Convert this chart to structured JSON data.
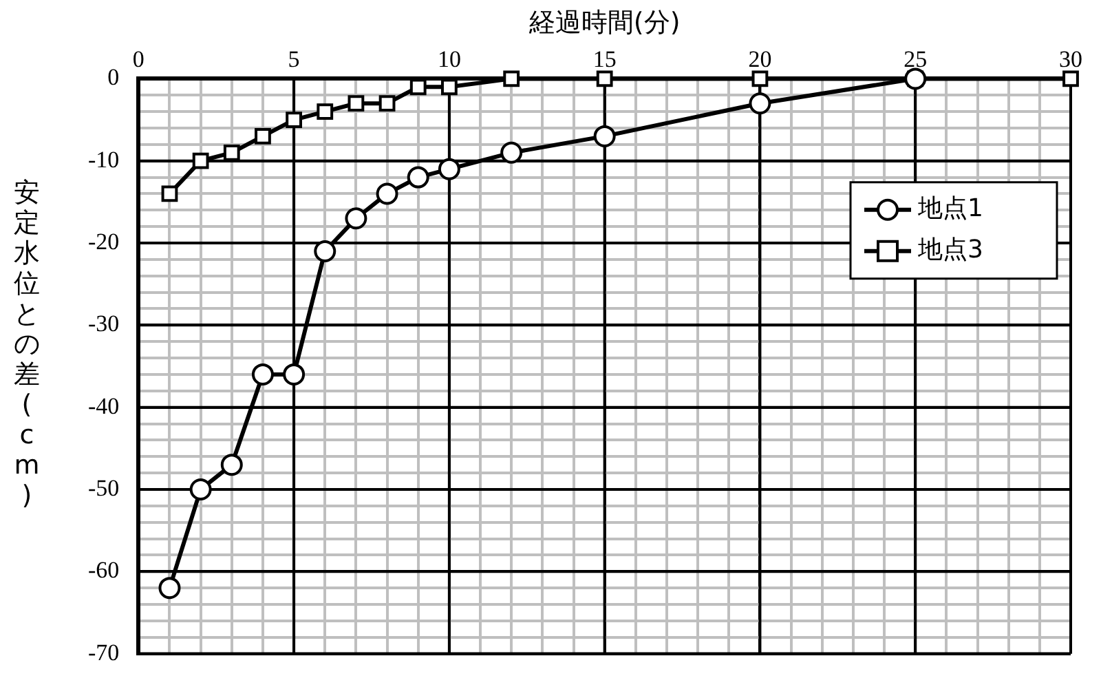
{
  "chart_data": {
    "type": "line",
    "xlabel": "経過時間(分)",
    "ylabel": "安定水位との差(cm)",
    "xlim": [
      0,
      30
    ],
    "xticks": [
      0,
      {
        "value": 1,
        "label": null
      },
      {
        "value": 2,
        "label": null
      },
      {
        "value": 3,
        "label": null
      },
      {
        "value": 4,
        "label": null
      },
      5,
      {
        "value": 6,
        "label": null
      },
      {
        "value": 7,
        "label": null
      },
      {
        "value": 8,
        "label": null
      },
      {
        "value": 9,
        "label": null
      },
      10,
      {
        "value": 11,
        "label": null
      },
      {
        "value": 12,
        "label": null
      },
      {
        "value": 13,
        "label": null
      },
      {
        "value": 14,
        "label": null
      },
      15,
      {
        "value": 16,
        "label": null
      },
      {
        "value": 17,
        "label": null
      },
      {
        "value": 18,
        "label": null
      },
      {
        "value": 19,
        "label": null
      },
      20,
      {
        "value": 21,
        "label": null
      },
      {
        "value": 22,
        "label": null
      },
      {
        "value": 23,
        "label": null
      },
      {
        "value": 24,
        "label": null
      },
      25,
      {
        "value": 26,
        "label": null
      },
      {
        "value": 27,
        "label": null
      },
      {
        "value": 28,
        "label": null
      },
      {
        "value": 29,
        "label": null
      },
      30
    ],
    "ylim": [
      -70,
      0
    ],
    "yticks": [
      -70,
      {
        "value": -68,
        "label": null
      },
      {
        "value": -66,
        "label": null
      },
      {
        "value": -64,
        "label": null
      },
      {
        "value": -62,
        "label": null
      },
      -60,
      {
        "value": -58,
        "label": null
      },
      {
        "value": -56,
        "label": null
      },
      {
        "value": -54,
        "label": null
      },
      {
        "value": -52,
        "label": null
      },
      -50,
      {
        "value": -48,
        "label": null
      },
      {
        "value": -46,
        "label": null
      },
      {
        "value": -44,
        "label": null
      },
      {
        "value": -42,
        "label": null
      },
      -40,
      {
        "value": -38,
        "label": null
      },
      {
        "value": -36,
        "label": null
      },
      {
        "value": -34,
        "label": null
      },
      {
        "value": -32,
        "label": null
      },
      -30,
      {
        "value": -28,
        "label": null
      },
      {
        "value": -26,
        "label": null
      },
      {
        "value": -24,
        "label": null
      },
      {
        "value": -22,
        "label": null
      },
      -20,
      {
        "value": -18,
        "label": null
      },
      {
        "value": -16,
        "label": null
      },
      {
        "value": -14,
        "label": null
      },
      {
        "value": -12,
        "label": null
      },
      -10,
      {
        "value": -8,
        "label": null
      },
      {
        "value": -6,
        "label": null
      },
      {
        "value": -4,
        "label": null
      },
      {
        "value": -2,
        "label": null
      },
      0
    ],
    "grid": true,
    "legend": "right",
    "line_style": "solid",
    "series": [
      {
        "name": "地点1",
        "color": "#000000",
        "marker": "circle",
        "x": [
          1,
          2,
          3,
          4,
          5,
          6,
          7,
          8,
          9,
          10,
          12,
          15,
          20,
          25
        ],
        "values": [
          -62,
          -50,
          -47,
          -36,
          -36,
          -21,
          -17,
          -14,
          -12,
          -11,
          -9,
          -7,
          -3,
          0
        ]
      },
      {
        "name": "地点3",
        "color": "#000000",
        "marker": "square",
        "x": [
          1,
          2,
          3,
          4,
          5,
          6,
          7,
          8,
          9,
          10,
          12,
          15,
          20,
          25,
          30
        ],
        "values": [
          -14,
          -10,
          -9,
          -7,
          -5,
          -4,
          -3,
          -3,
          -1,
          -1,
          0,
          0,
          0,
          0,
          0
        ]
      }
    ]
  }
}
